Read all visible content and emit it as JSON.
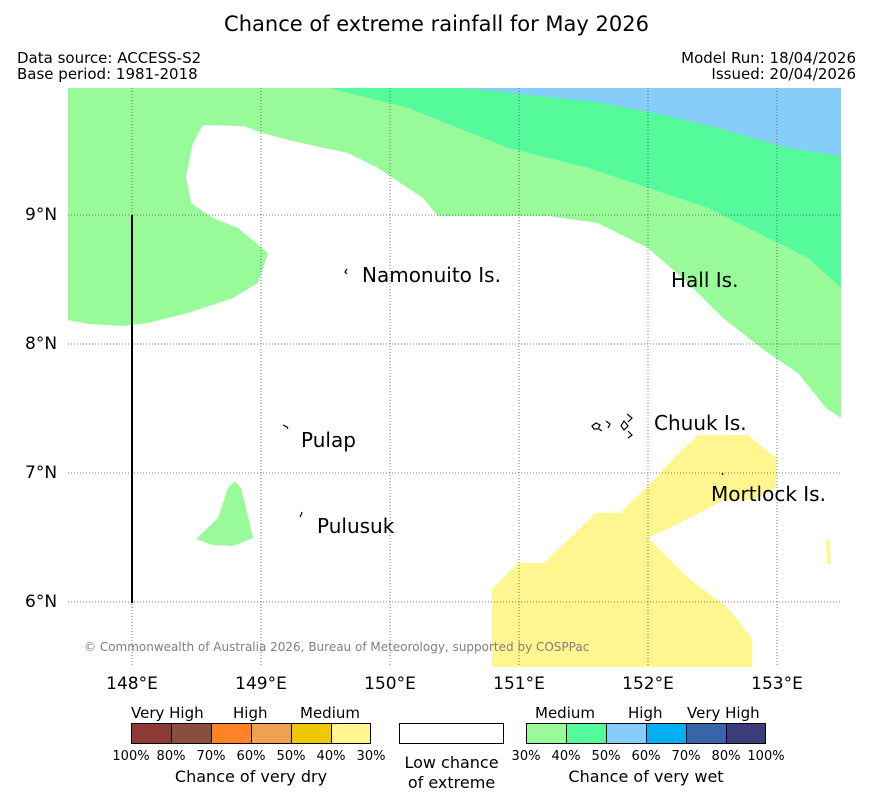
{
  "title": "Chance of extreme rainfall for May 2026",
  "meta": {
    "data_source": "Data source: ACCESS-S2",
    "base_period": "Base period: 1981-2018",
    "model_run": "Model Run: 18/04/2026",
    "issued": "Issued: 20/04/2026"
  },
  "map": {
    "lat_labels": [
      "9°N",
      "8°N",
      "7°N",
      "6°N"
    ],
    "lon_labels": [
      "148°E",
      "149°E",
      "150°E",
      "151°E",
      "152°E",
      "153°E"
    ],
    "islands": {
      "namonuito": "Namonuito Is.",
      "hall": "Hall Is.",
      "chuuk": "Chuuk Is.",
      "pulap": "Pulap",
      "mortlock": "Mortlock Is.",
      "pulusuk": "Pulusuk"
    },
    "copyright": "© Commonwealth of Australia 2026, Bureau of Meteorology, supported by COSPPac",
    "colors": {
      "wet_30_40": "#99fa99",
      "wet_40_50": "#55fa9b",
      "wet_50_60": "#87cdfa",
      "dry_30_40": "#fff690"
    }
  },
  "legend": {
    "dry": {
      "heads": [
        "Very High",
        "High",
        "Medium"
      ],
      "ticks": [
        "100%",
        "80%",
        "70%",
        "60%",
        "50%",
        "40%",
        "30%"
      ],
      "caption": "Chance of very dry",
      "colors": [
        "#8b3a34",
        "#8a4f3c",
        "#ff8225",
        "#f0a050",
        "#f0c800",
        "#fff690"
      ]
    },
    "low": {
      "caption_line1": "Low chance",
      "caption_line2": "of extreme"
    },
    "wet": {
      "heads": [
        "Medium",
        "High",
        "Very High"
      ],
      "ticks": [
        "30%",
        "40%",
        "50%",
        "60%",
        "70%",
        "80%",
        "100%"
      ],
      "caption": "Chance of very wet",
      "colors": [
        "#99fa99",
        "#55fa9b",
        "#87cdfa",
        "#00b0f0",
        "#3864a8",
        "#3c3c78"
      ]
    }
  }
}
